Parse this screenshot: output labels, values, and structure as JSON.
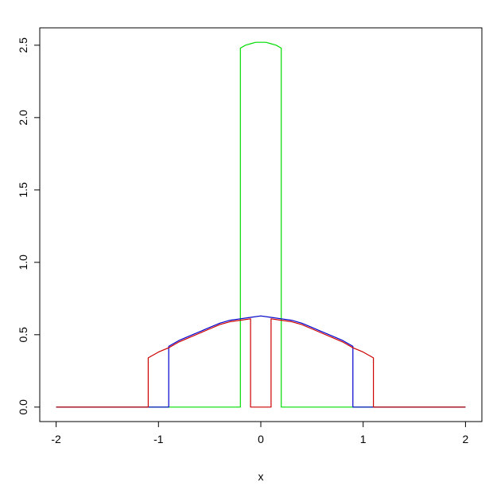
{
  "chart_data": {
    "type": "line",
    "title": "",
    "xlabel": "x",
    "ylabel": "",
    "xlim": [
      -2.16,
      2.16
    ],
    "ylim": [
      -0.1,
      2.62
    ],
    "grid": false,
    "x_ticks": [
      -2,
      -1,
      0,
      1,
      2
    ],
    "x_tick_labels": [
      "-2",
      "-1",
      "0",
      "1",
      "2"
    ],
    "y_ticks": [
      0,
      0.5,
      1,
      1.5,
      2,
      2.5
    ],
    "y_tick_labels": [
      "0.0",
      "0.5",
      "1.0",
      "1.5",
      "2.0",
      "2.5"
    ],
    "series": [
      {
        "color": "#00dd00",
        "points": [
          [
            -2,
            0
          ],
          [
            -0.2,
            0
          ],
          [
            -0.2,
            2.48
          ],
          [
            -0.15,
            2.5
          ],
          [
            -0.1,
            2.51
          ],
          [
            -0.05,
            2.52
          ],
          [
            0,
            2.52
          ],
          [
            0.05,
            2.52
          ],
          [
            0.1,
            2.51
          ],
          [
            0.15,
            2.5
          ],
          [
            0.2,
            2.48
          ],
          [
            0.2,
            0
          ],
          [
            2,
            0
          ]
        ]
      },
      {
        "color": "#0000cc",
        "points": [
          [
            -2,
            0
          ],
          [
            -0.9,
            0
          ],
          [
            -0.9,
            0.42
          ],
          [
            -0.8,
            0.46
          ],
          [
            -0.7,
            0.49
          ],
          [
            -0.6,
            0.52
          ],
          [
            -0.5,
            0.55
          ],
          [
            -0.4,
            0.58
          ],
          [
            -0.3,
            0.6
          ],
          [
            -0.2,
            0.61
          ],
          [
            -0.1,
            0.62
          ],
          [
            0,
            0.63
          ],
          [
            0.1,
            0.62
          ],
          [
            0.2,
            0.61
          ],
          [
            0.3,
            0.6
          ],
          [
            0.4,
            0.58
          ],
          [
            0.5,
            0.55
          ],
          [
            0.6,
            0.52
          ],
          [
            0.7,
            0.49
          ],
          [
            0.8,
            0.46
          ],
          [
            0.9,
            0.42
          ],
          [
            0.9,
            0
          ],
          [
            2,
            0
          ]
        ]
      },
      {
        "color": "#cc0000",
        "points": [
          [
            -2,
            0
          ],
          [
            -1.1,
            0
          ],
          [
            -1.1,
            0.34
          ],
          [
            -1.0,
            0.38
          ],
          [
            -0.9,
            0.41
          ],
          [
            -0.8,
            0.45
          ],
          [
            -0.7,
            0.48
          ],
          [
            -0.6,
            0.51
          ],
          [
            -0.5,
            0.54
          ],
          [
            -0.4,
            0.57
          ],
          [
            -0.3,
            0.59
          ],
          [
            -0.2,
            0.6
          ],
          [
            -0.1,
            0.61
          ],
          [
            -0.1,
            0
          ],
          [
            0.1,
            0
          ],
          [
            0.1,
            0.61
          ],
          [
            0.2,
            0.6
          ],
          [
            0.3,
            0.59
          ],
          [
            0.4,
            0.57
          ],
          [
            0.5,
            0.54
          ],
          [
            0.6,
            0.51
          ],
          [
            0.7,
            0.48
          ],
          [
            0.8,
            0.45
          ],
          [
            0.9,
            0.41
          ],
          [
            1.0,
            0.38
          ],
          [
            1.1,
            0.34
          ],
          [
            1.1,
            0
          ],
          [
            2,
            0
          ]
        ]
      }
    ]
  }
}
